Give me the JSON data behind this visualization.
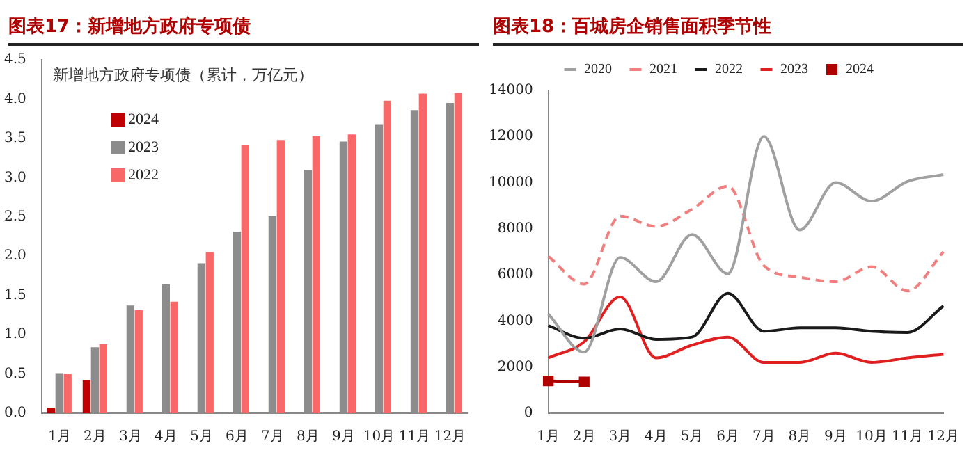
{
  "chart_data": [
    {
      "type": "bar",
      "title": "图表17：新增地方政府专项债",
      "annotations": [
        "新增地方政府专项债（累计，万亿元）"
      ],
      "categories": [
        "1月",
        "2月",
        "3月",
        "4月",
        "5月",
        "6月",
        "7月",
        "8月",
        "9月",
        "10月",
        "11月",
        "12月"
      ],
      "series": [
        {
          "name": "2024",
          "color": "#c00000",
          "values": [
            0.07,
            0.42,
            null,
            null,
            null,
            null,
            null,
            null,
            null,
            null,
            null,
            null
          ]
        },
        {
          "name": "2023",
          "color": "#8c8c8c",
          "values": [
            0.51,
            0.84,
            1.37,
            1.64,
            1.91,
            2.31,
            2.51,
            3.1,
            3.46,
            3.68,
            3.86,
            3.95
          ]
        },
        {
          "name": "2022",
          "color": "#f86868",
          "values": [
            0.5,
            0.88,
            1.31,
            1.42,
            2.05,
            3.42,
            3.48,
            3.53,
            3.55,
            3.98,
            4.07,
            4.08
          ]
        }
      ],
      "ylim": [
        0,
        4.5
      ],
      "yticks": [
        {
          "value": 0,
          "label": "0.0"
        },
        {
          "value": 0.5,
          "label": "0.5"
        },
        {
          "value": 1,
          "label": "1.0"
        },
        {
          "value": 1.5,
          "label": "1.5"
        },
        {
          "value": 2,
          "label": "2.0"
        },
        {
          "value": 2.5,
          "label": "2.5"
        },
        {
          "value": 3,
          "label": "3.0"
        },
        {
          "value": 3.5,
          "label": "3.5"
        },
        {
          "value": 4,
          "label": "4.0"
        },
        {
          "value": 4.5,
          "label": "4.5"
        }
      ],
      "grid": false,
      "legend": "top left"
    },
    {
      "type": "line",
      "title": "图表18：百城房企销售面积季节性",
      "categories": [
        "1月",
        "2月",
        "3月",
        "4月",
        "5月",
        "6月",
        "7月",
        "8月",
        "9月",
        "10月",
        "11月",
        "12月"
      ],
      "series": [
        {
          "name": "2020",
          "color": "#a0a0a0",
          "line_style": "solid",
          "values": [
            4300,
            2650,
            6750,
            5700,
            7750,
            6050,
            12000,
            7950,
            10000,
            9200,
            10050,
            10350
          ]
        },
        {
          "name": "2021",
          "color": "#f08080",
          "line_style": "dashed",
          "values": [
            6800,
            5600,
            8550,
            8100,
            8850,
            9850,
            6400,
            5900,
            5700,
            6350,
            5300,
            7000
          ]
        },
        {
          "name": "2022",
          "color": "#1a1a1a",
          "line_style": "solid",
          "values": [
            3800,
            3250,
            3650,
            3200,
            3300,
            5200,
            3550,
            3700,
            3700,
            3550,
            3500,
            4650
          ]
        },
        {
          "name": "2023",
          "color": "#e02020",
          "line_style": "solid",
          "values": [
            2400,
            3100,
            5050,
            2400,
            2950,
            3300,
            2200,
            2200,
            2600,
            2200,
            2400,
            2550
          ]
        },
        {
          "name": "2024",
          "color": "#b00000",
          "line_style": "solid",
          "marker": "square",
          "values": [
            1400,
            1350,
            null,
            null,
            null,
            null,
            null,
            null,
            null,
            null,
            null,
            null
          ]
        }
      ],
      "ylim": [
        0,
        14000
      ],
      "yticks": [
        0,
        2000,
        4000,
        6000,
        8000,
        10000,
        12000,
        14000
      ],
      "grid": false,
      "legend": "top",
      "marker": "none"
    }
  ]
}
